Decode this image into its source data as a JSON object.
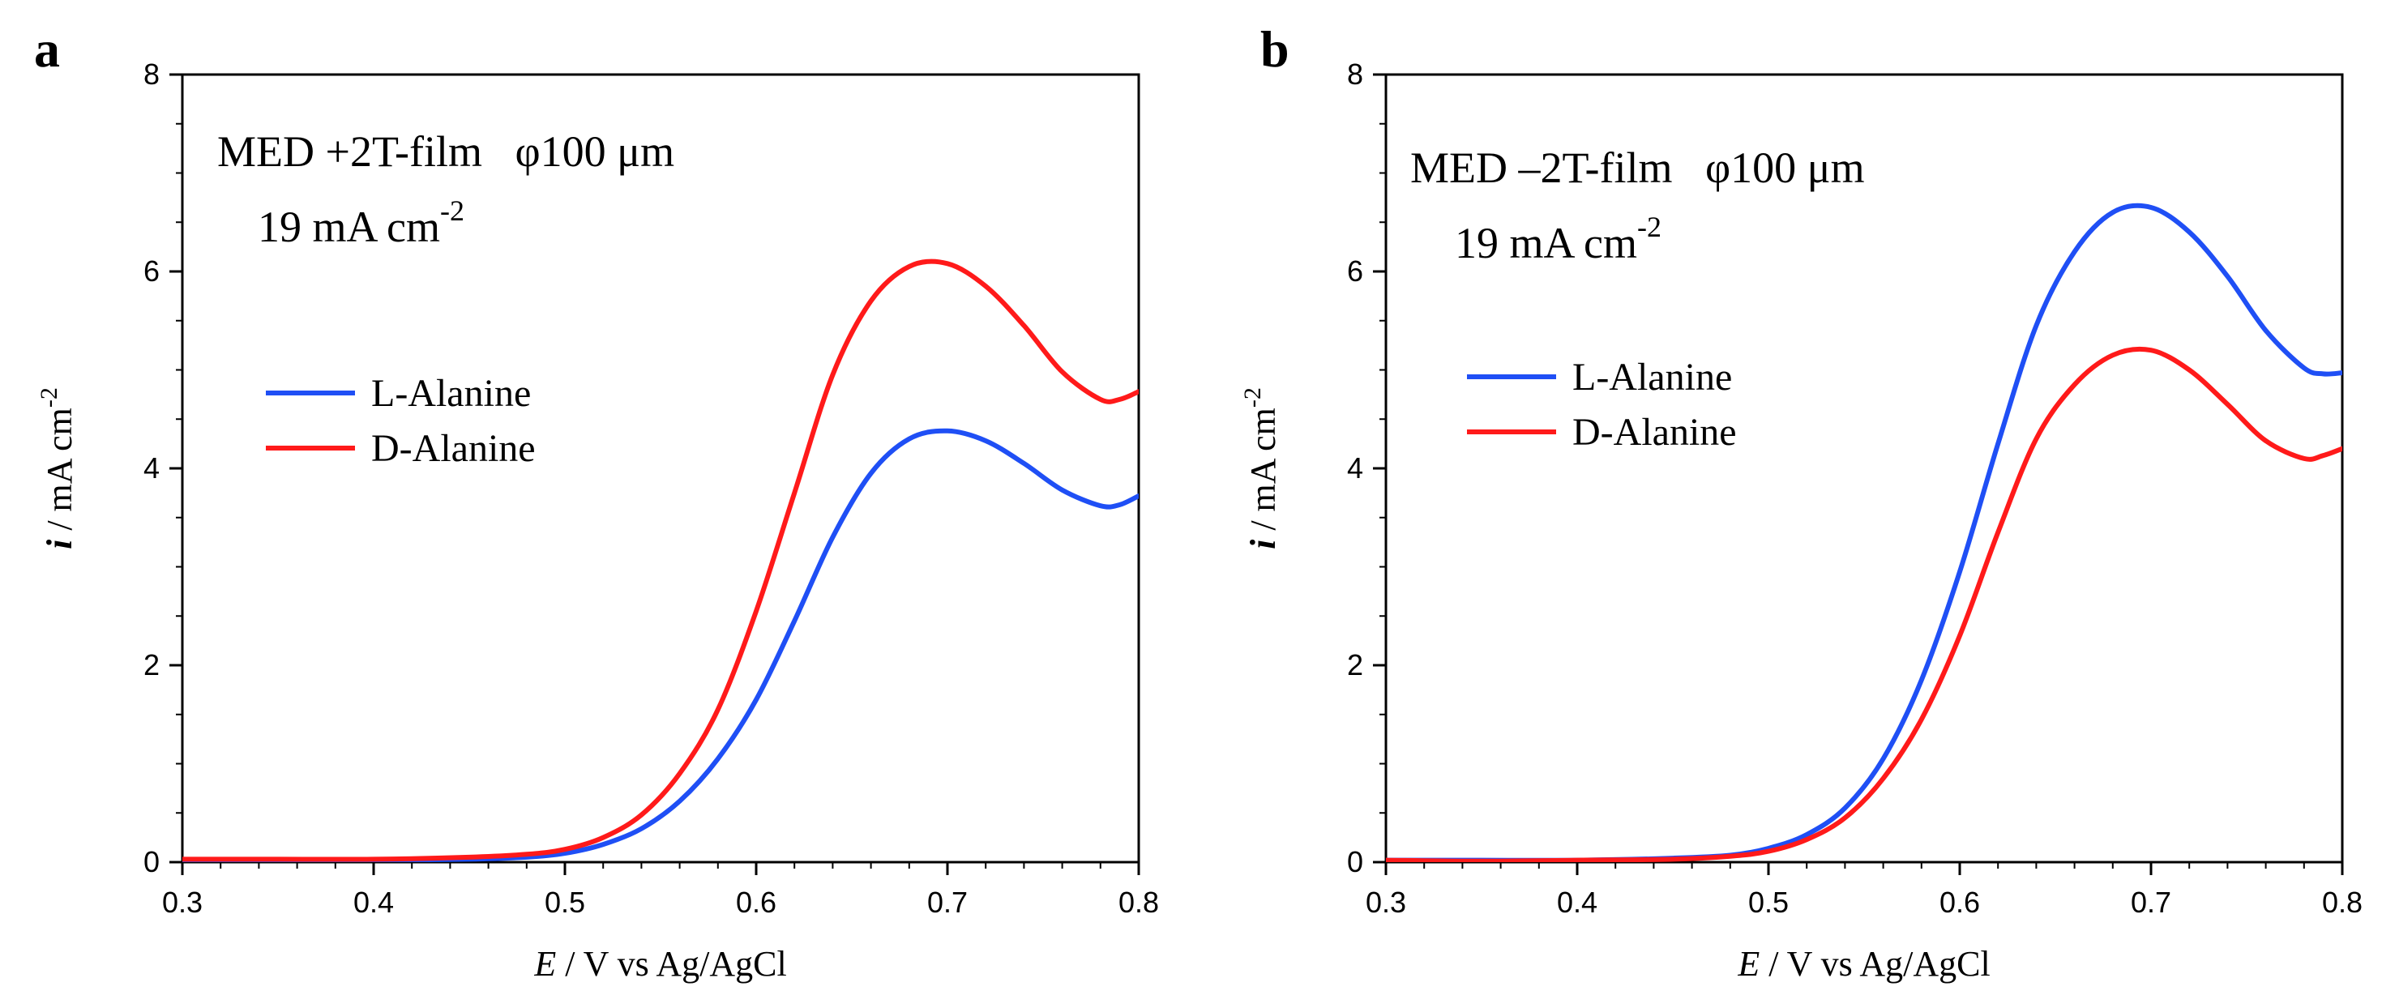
{
  "chart_data": [
    {
      "panel": "a",
      "type": "line",
      "annotation": {
        "line1": "MED +2T-film   φ100 μm",
        "line2_value": "19 mA cm",
        "line2_sup": "-2"
      },
      "xlabel_italic": "E",
      "xlabel_rest": " / V vs Ag/AgCl",
      "ylabel_italic": "i",
      "ylabel_rest": " / mA cm",
      "ylabel_sup": "-2",
      "xlim": [
        0.3,
        0.8
      ],
      "ylim": [
        0,
        8
      ],
      "xticks": [
        "0.3",
        "0.4",
        "0.5",
        "0.6",
        "0.7",
        "0.8"
      ],
      "yticks": [
        "0",
        "2",
        "4",
        "6",
        "8"
      ],
      "legend_position": "middle-left",
      "series": [
        {
          "name": "L-Alanine",
          "color": "#1f4ff5",
          "x": [
            0.3,
            0.35,
            0.4,
            0.45,
            0.48,
            0.5,
            0.52,
            0.54,
            0.56,
            0.58,
            0.6,
            0.62,
            0.64,
            0.66,
            0.68,
            0.7,
            0.72,
            0.74,
            0.76,
            0.78,
            0.79,
            0.8
          ],
          "y": [
            0.02,
            0.02,
            0.02,
            0.03,
            0.05,
            0.09,
            0.18,
            0.34,
            0.62,
            1.05,
            1.65,
            2.45,
            3.3,
            3.95,
            4.3,
            4.38,
            4.28,
            4.05,
            3.78,
            3.62,
            3.63,
            3.72
          ]
        },
        {
          "name": "D-Alanine",
          "color": "#ff1a1a",
          "x": [
            0.3,
            0.35,
            0.4,
            0.45,
            0.48,
            0.5,
            0.52,
            0.54,
            0.56,
            0.58,
            0.6,
            0.62,
            0.64,
            0.66,
            0.68,
            0.7,
            0.72,
            0.74,
            0.76,
            0.78,
            0.79,
            0.8
          ],
          "y": [
            0.03,
            0.03,
            0.03,
            0.05,
            0.08,
            0.13,
            0.25,
            0.48,
            0.9,
            1.55,
            2.55,
            3.75,
            4.95,
            5.7,
            6.05,
            6.08,
            5.85,
            5.45,
            4.98,
            4.7,
            4.7,
            4.78
          ]
        }
      ]
    },
    {
      "panel": "b",
      "type": "line",
      "annotation": {
        "line1": "MED –2T-film   φ100 μm",
        "line2_value": "19 mA cm",
        "line2_sup": "-2"
      },
      "xlabel_italic": "E",
      "xlabel_rest": " / V vs Ag/AgCl",
      "ylabel_italic": "i",
      "ylabel_rest": " / mA cm",
      "ylabel_sup": "-2",
      "xlim": [
        0.3,
        0.8
      ],
      "ylim": [
        0,
        8
      ],
      "xticks": [
        "0.3",
        "0.4",
        "0.5",
        "0.6",
        "0.7",
        "0.8"
      ],
      "yticks": [
        "0",
        "2",
        "4",
        "6",
        "8"
      ],
      "legend_position": "middle-left",
      "series": [
        {
          "name": "L-Alanine",
          "color": "#1f4ff5",
          "x": [
            0.3,
            0.35,
            0.4,
            0.45,
            0.48,
            0.5,
            0.52,
            0.54,
            0.56,
            0.58,
            0.6,
            0.62,
            0.64,
            0.66,
            0.68,
            0.7,
            0.72,
            0.74,
            0.76,
            0.78,
            0.79,
            0.8
          ],
          "y": [
            0.02,
            0.02,
            0.02,
            0.04,
            0.07,
            0.14,
            0.28,
            0.55,
            1.05,
            1.85,
            2.95,
            4.25,
            5.45,
            6.2,
            6.6,
            6.65,
            6.4,
            5.95,
            5.4,
            5.02,
            4.96,
            4.97
          ]
        },
        {
          "name": "D-Alanine",
          "color": "#ff1a1a",
          "x": [
            0.3,
            0.35,
            0.4,
            0.45,
            0.48,
            0.5,
            0.52,
            0.54,
            0.56,
            0.58,
            0.6,
            0.62,
            0.64,
            0.66,
            0.68,
            0.7,
            0.72,
            0.74,
            0.76,
            0.78,
            0.79,
            0.8
          ],
          "y": [
            0.02,
            0.01,
            0.02,
            0.03,
            0.06,
            0.11,
            0.23,
            0.45,
            0.85,
            1.45,
            2.3,
            3.35,
            4.3,
            4.85,
            5.15,
            5.2,
            5.0,
            4.65,
            4.28,
            4.1,
            4.13,
            4.2
          ]
        }
      ]
    }
  ]
}
